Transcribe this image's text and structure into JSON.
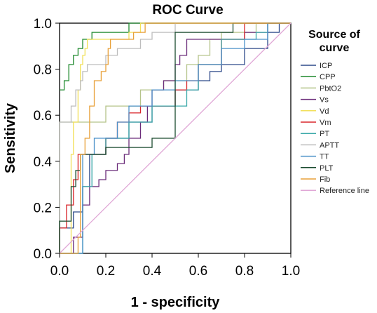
{
  "chart_data": {
    "type": "line",
    "title": "ROC Curve",
    "xlabel": "1 - specificity",
    "ylabel": "Sensitivity",
    "xlim": [
      0,
      1
    ],
    "ylim": [
      0,
      1
    ],
    "x_ticks": [
      "0.0",
      "0.2",
      "0.4",
      "0.6",
      "0.8",
      "1.0"
    ],
    "y_ticks": [
      "0.0",
      "0.2",
      "0.4",
      "0.6",
      "0.8",
      "1.0"
    ],
    "grid": false,
    "legend_title_lines": [
      "Source of",
      "curve"
    ],
    "legend_placement": "right",
    "series": [
      {
        "name": "ICP",
        "color": "#2e4a8a",
        "points": [
          [
            0,
            0
          ],
          [
            0,
            0.11
          ],
          [
            0.06,
            0.11
          ],
          [
            0.06,
            0.18
          ],
          [
            0.1,
            0.18
          ],
          [
            0.1,
            0.29
          ],
          [
            0.13,
            0.29
          ],
          [
            0.13,
            0.43
          ],
          [
            0.2,
            0.43
          ],
          [
            0.2,
            0.5
          ],
          [
            0.3,
            0.5
          ],
          [
            0.3,
            0.57
          ],
          [
            0.4,
            0.57
          ],
          [
            0.4,
            0.64
          ],
          [
            0.5,
            0.64
          ],
          [
            0.5,
            0.71
          ],
          [
            0.6,
            0.71
          ],
          [
            0.6,
            0.75
          ],
          [
            0.65,
            0.75
          ],
          [
            0.65,
            0.79
          ],
          [
            0.7,
            0.79
          ],
          [
            0.7,
            0.82
          ],
          [
            0.8,
            0.82
          ],
          [
            0.8,
            0.89
          ],
          [
            0.9,
            0.89
          ],
          [
            0.9,
            0.96
          ],
          [
            0.95,
            0.96
          ],
          [
            0.95,
            1
          ],
          [
            1,
            1
          ]
        ]
      },
      {
        "name": "CPP",
        "color": "#1f8a2e",
        "points": [
          [
            0,
            0.71
          ],
          [
            0.02,
            0.71
          ],
          [
            0.02,
            0.75
          ],
          [
            0.04,
            0.75
          ],
          [
            0.04,
            0.82
          ],
          [
            0.06,
            0.82
          ],
          [
            0.06,
            0.86
          ],
          [
            0.08,
            0.86
          ],
          [
            0.08,
            0.89
          ],
          [
            0.1,
            0.89
          ],
          [
            0.1,
            0.93
          ],
          [
            0.14,
            0.93
          ],
          [
            0.14,
            0.96
          ],
          [
            0.3,
            0.96
          ],
          [
            0.3,
            1
          ],
          [
            1,
            1
          ]
        ]
      },
      {
        "name": "PbtO2",
        "color": "#b5c48a",
        "points": [
          [
            0,
            0
          ],
          [
            0,
            0.57
          ],
          [
            0.2,
            0.57
          ],
          [
            0.2,
            0.64
          ],
          [
            0.35,
            0.64
          ],
          [
            0.35,
            0.71
          ],
          [
            0.45,
            0.71
          ],
          [
            0.45,
            0.75
          ],
          [
            0.55,
            0.75
          ],
          [
            0.55,
            0.82
          ],
          [
            0.6,
            0.82
          ],
          [
            0.6,
            0.86
          ],
          [
            0.65,
            0.86
          ],
          [
            0.65,
            0.93
          ],
          [
            0.7,
            0.93
          ],
          [
            0.7,
            0.96
          ],
          [
            0.85,
            0.96
          ],
          [
            0.85,
            1
          ],
          [
            1,
            1
          ]
        ]
      },
      {
        "name": "Vs",
        "color": "#6b2c7a",
        "points": [
          [
            0,
            0
          ],
          [
            0.06,
            0
          ],
          [
            0.06,
            0.07
          ],
          [
            0.1,
            0.07
          ],
          [
            0.1,
            0.21
          ],
          [
            0.13,
            0.21
          ],
          [
            0.13,
            0.29
          ],
          [
            0.17,
            0.29
          ],
          [
            0.17,
            0.32
          ],
          [
            0.2,
            0.32
          ],
          [
            0.2,
            0.36
          ],
          [
            0.25,
            0.36
          ],
          [
            0.25,
            0.39
          ],
          [
            0.28,
            0.39
          ],
          [
            0.28,
            0.43
          ],
          [
            0.3,
            0.43
          ],
          [
            0.3,
            0.5
          ],
          [
            0.35,
            0.5
          ],
          [
            0.35,
            0.57
          ],
          [
            0.38,
            0.57
          ],
          [
            0.38,
            0.64
          ],
          [
            0.4,
            0.64
          ],
          [
            0.4,
            0.71
          ],
          [
            0.45,
            0.71
          ],
          [
            0.45,
            0.75
          ],
          [
            0.5,
            0.75
          ],
          [
            0.5,
            0.82
          ],
          [
            0.52,
            0.82
          ],
          [
            0.52,
            0.86
          ],
          [
            0.55,
            0.86
          ],
          [
            0.55,
            0.93
          ],
          [
            0.8,
            0.93
          ],
          [
            0.8,
            0.96
          ],
          [
            0.9,
            0.96
          ],
          [
            0.9,
            1
          ],
          [
            1,
            1
          ]
        ]
      },
      {
        "name": "Vd",
        "color": "#f2e05a",
        "points": [
          [
            0,
            0
          ],
          [
            0.05,
            0
          ],
          [
            0.05,
            0.43
          ],
          [
            0.06,
            0.43
          ],
          [
            0.06,
            0.57
          ],
          [
            0.08,
            0.57
          ],
          [
            0.08,
            0.71
          ],
          [
            0.09,
            0.71
          ],
          [
            0.09,
            0.82
          ],
          [
            0.1,
            0.82
          ],
          [
            0.1,
            0.86
          ],
          [
            0.11,
            0.86
          ],
          [
            0.11,
            0.89
          ],
          [
            0.12,
            0.89
          ],
          [
            0.12,
            0.93
          ],
          [
            0.3,
            0.93
          ],
          [
            0.3,
            0.96
          ],
          [
            0.35,
            0.96
          ],
          [
            0.35,
            1
          ],
          [
            1,
            1
          ]
        ]
      },
      {
        "name": "Vm",
        "color": "#d9262b",
        "points": [
          [
            0,
            0
          ],
          [
            0,
            0.11
          ],
          [
            0.03,
            0.11
          ],
          [
            0.03,
            0.21
          ],
          [
            0.06,
            0.21
          ],
          [
            0.06,
            0.32
          ],
          [
            0.08,
            0.32
          ],
          [
            0.08,
            0.43
          ],
          [
            0.2,
            0.43
          ],
          [
            0.2,
            0.5
          ],
          [
            0.25,
            0.5
          ],
          [
            0.25,
            0.57
          ],
          [
            0.3,
            0.57
          ],
          [
            0.3,
            0.61
          ],
          [
            0.35,
            0.61
          ],
          [
            0.35,
            0.64
          ],
          [
            0.5,
            0.64
          ],
          [
            0.5,
            0.71
          ],
          [
            0.55,
            0.71
          ],
          [
            0.55,
            0.75
          ],
          [
            0.6,
            0.75
          ],
          [
            0.6,
            0.82
          ],
          [
            0.7,
            0.82
          ],
          [
            0.7,
            0.93
          ],
          [
            0.8,
            0.93
          ],
          [
            0.8,
            1
          ],
          [
            1,
            1
          ]
        ]
      },
      {
        "name": "PT",
        "color": "#3aa8a8",
        "points": [
          [
            0,
            0
          ],
          [
            0.1,
            0
          ],
          [
            0.1,
            0.29
          ],
          [
            0.14,
            0.29
          ],
          [
            0.14,
            0.43
          ],
          [
            0.2,
            0.43
          ],
          [
            0.2,
            0.5
          ],
          [
            0.3,
            0.5
          ],
          [
            0.3,
            0.57
          ],
          [
            0.4,
            0.57
          ],
          [
            0.4,
            0.64
          ],
          [
            0.55,
            0.64
          ],
          [
            0.55,
            0.71
          ],
          [
            0.6,
            0.71
          ],
          [
            0.6,
            0.82
          ],
          [
            0.7,
            0.82
          ],
          [
            0.7,
            0.93
          ],
          [
            0.85,
            0.93
          ],
          [
            0.85,
            0.96
          ],
          [
            0.9,
            0.96
          ],
          [
            0.9,
            1
          ],
          [
            1,
            1
          ]
        ]
      },
      {
        "name": "APTT",
        "color": "#bdbdbd",
        "points": [
          [
            0,
            0
          ],
          [
            0,
            0.57
          ],
          [
            0.05,
            0.57
          ],
          [
            0.05,
            0.64
          ],
          [
            0.07,
            0.64
          ],
          [
            0.07,
            0.71
          ],
          [
            0.09,
            0.71
          ],
          [
            0.09,
            0.75
          ],
          [
            0.1,
            0.75
          ],
          [
            0.1,
            0.79
          ],
          [
            0.12,
            0.79
          ],
          [
            0.12,
            0.82
          ],
          [
            0.2,
            0.82
          ],
          [
            0.2,
            0.86
          ],
          [
            0.25,
            0.86
          ],
          [
            0.25,
            0.89
          ],
          [
            0.35,
            0.89
          ],
          [
            0.35,
            0.93
          ],
          [
            0.4,
            0.93
          ],
          [
            0.4,
            0.96
          ],
          [
            0.5,
            0.96
          ],
          [
            0.5,
            1
          ],
          [
            1,
            1
          ]
        ]
      },
      {
        "name": "TT",
        "color": "#4c92c9",
        "points": [
          [
            0,
            0
          ],
          [
            0.1,
            0
          ],
          [
            0.1,
            0.43
          ],
          [
            0.15,
            0.43
          ],
          [
            0.15,
            0.5
          ],
          [
            0.25,
            0.5
          ],
          [
            0.25,
            0.57
          ],
          [
            0.3,
            0.57
          ],
          [
            0.3,
            0.64
          ],
          [
            0.4,
            0.64
          ],
          [
            0.4,
            0.71
          ],
          [
            0.5,
            0.71
          ],
          [
            0.5,
            0.75
          ],
          [
            0.6,
            0.75
          ],
          [
            0.6,
            0.82
          ],
          [
            0.7,
            0.82
          ],
          [
            0.7,
            0.89
          ],
          [
            0.8,
            0.89
          ],
          [
            0.8,
            0.93
          ],
          [
            0.9,
            0.93
          ],
          [
            0.9,
            1
          ],
          [
            1,
            1
          ]
        ]
      },
      {
        "name": "PLT",
        "color": "#1a4a2e",
        "points": [
          [
            0,
            0
          ],
          [
            0,
            0.14
          ],
          [
            0.05,
            0.14
          ],
          [
            0.05,
            0.29
          ],
          [
            0.07,
            0.29
          ],
          [
            0.07,
            0.36
          ],
          [
            0.09,
            0.36
          ],
          [
            0.09,
            0.43
          ],
          [
            0.2,
            0.43
          ],
          [
            0.2,
            0.46
          ],
          [
            0.4,
            0.46
          ],
          [
            0.4,
            0.5
          ],
          [
            0.5,
            0.5
          ],
          [
            0.5,
            0.96
          ],
          [
            0.75,
            0.96
          ],
          [
            0.75,
            1
          ],
          [
            1,
            1
          ]
        ]
      },
      {
        "name": "Fib",
        "color": "#e8a13a",
        "points": [
          [
            0,
            0
          ],
          [
            0.08,
            0
          ],
          [
            0.08,
            0.07
          ],
          [
            0.09,
            0.07
          ],
          [
            0.09,
            0.43
          ],
          [
            0.11,
            0.43
          ],
          [
            0.11,
            0.5
          ],
          [
            0.13,
            0.5
          ],
          [
            0.13,
            0.64
          ],
          [
            0.15,
            0.64
          ],
          [
            0.15,
            0.75
          ],
          [
            0.18,
            0.75
          ],
          [
            0.18,
            0.79
          ],
          [
            0.2,
            0.79
          ],
          [
            0.2,
            0.82
          ],
          [
            0.21,
            0.82
          ],
          [
            0.21,
            0.89
          ],
          [
            0.22,
            0.89
          ],
          [
            0.22,
            0.93
          ],
          [
            0.32,
            0.93
          ],
          [
            0.32,
            0.96
          ],
          [
            0.37,
            0.96
          ],
          [
            0.37,
            1
          ],
          [
            1,
            1
          ]
        ]
      },
      {
        "name": "Reference line",
        "color": "#e0a7d6",
        "points": [
          [
            0,
            0
          ],
          [
            1,
            1
          ]
        ]
      }
    ]
  }
}
